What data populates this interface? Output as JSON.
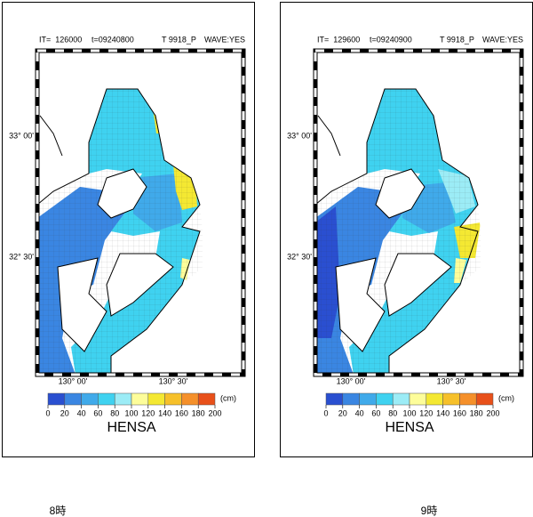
{
  "panels": [
    {
      "header": {
        "iteration": "IT=  126000",
        "time": "t=09240800",
        "case": "T 9918_P",
        "wave": "WAVE:YES"
      },
      "lat_labels": [
        "33° 00'",
        "32° 30'"
      ],
      "lon_labels": [
        "130° 00'",
        "130° 30'"
      ],
      "colorbar": {
        "ticks": [
          0,
          20,
          40,
          60,
          80,
          100,
          120,
          140,
          160,
          180,
          200
        ],
        "colors": [
          "#2a4fd0",
          "#3a86e2",
          "#40aaea",
          "#3fd2f0",
          "#9cecf6",
          "#fdfd9a",
          "#f4e832",
          "#f6c02a",
          "#f5902a",
          "#e8501a"
        ],
        "unit": "(cm)"
      },
      "variable": "HENSA",
      "caption": "8時"
    },
    {
      "header": {
        "iteration": "IT=  129600",
        "time": "t=09240900",
        "case": "T 9918_P",
        "wave": "WAVE:YES"
      },
      "lat_labels": [
        "33° 00'",
        "32° 30'"
      ],
      "lon_labels": [
        "130° 00'",
        "130° 30'"
      ],
      "colorbar": {
        "ticks": [
          0,
          20,
          40,
          60,
          80,
          100,
          120,
          140,
          160,
          180,
          200
        ],
        "colors": [
          "#2a4fd0",
          "#3a86e2",
          "#40aaea",
          "#3fd2f0",
          "#9cecf6",
          "#fdfd9a",
          "#f4e832",
          "#f6c02a",
          "#f5902a",
          "#e8501a"
        ],
        "unit": "(cm)"
      },
      "variable": "HENSA",
      "caption": "9時"
    }
  ]
}
